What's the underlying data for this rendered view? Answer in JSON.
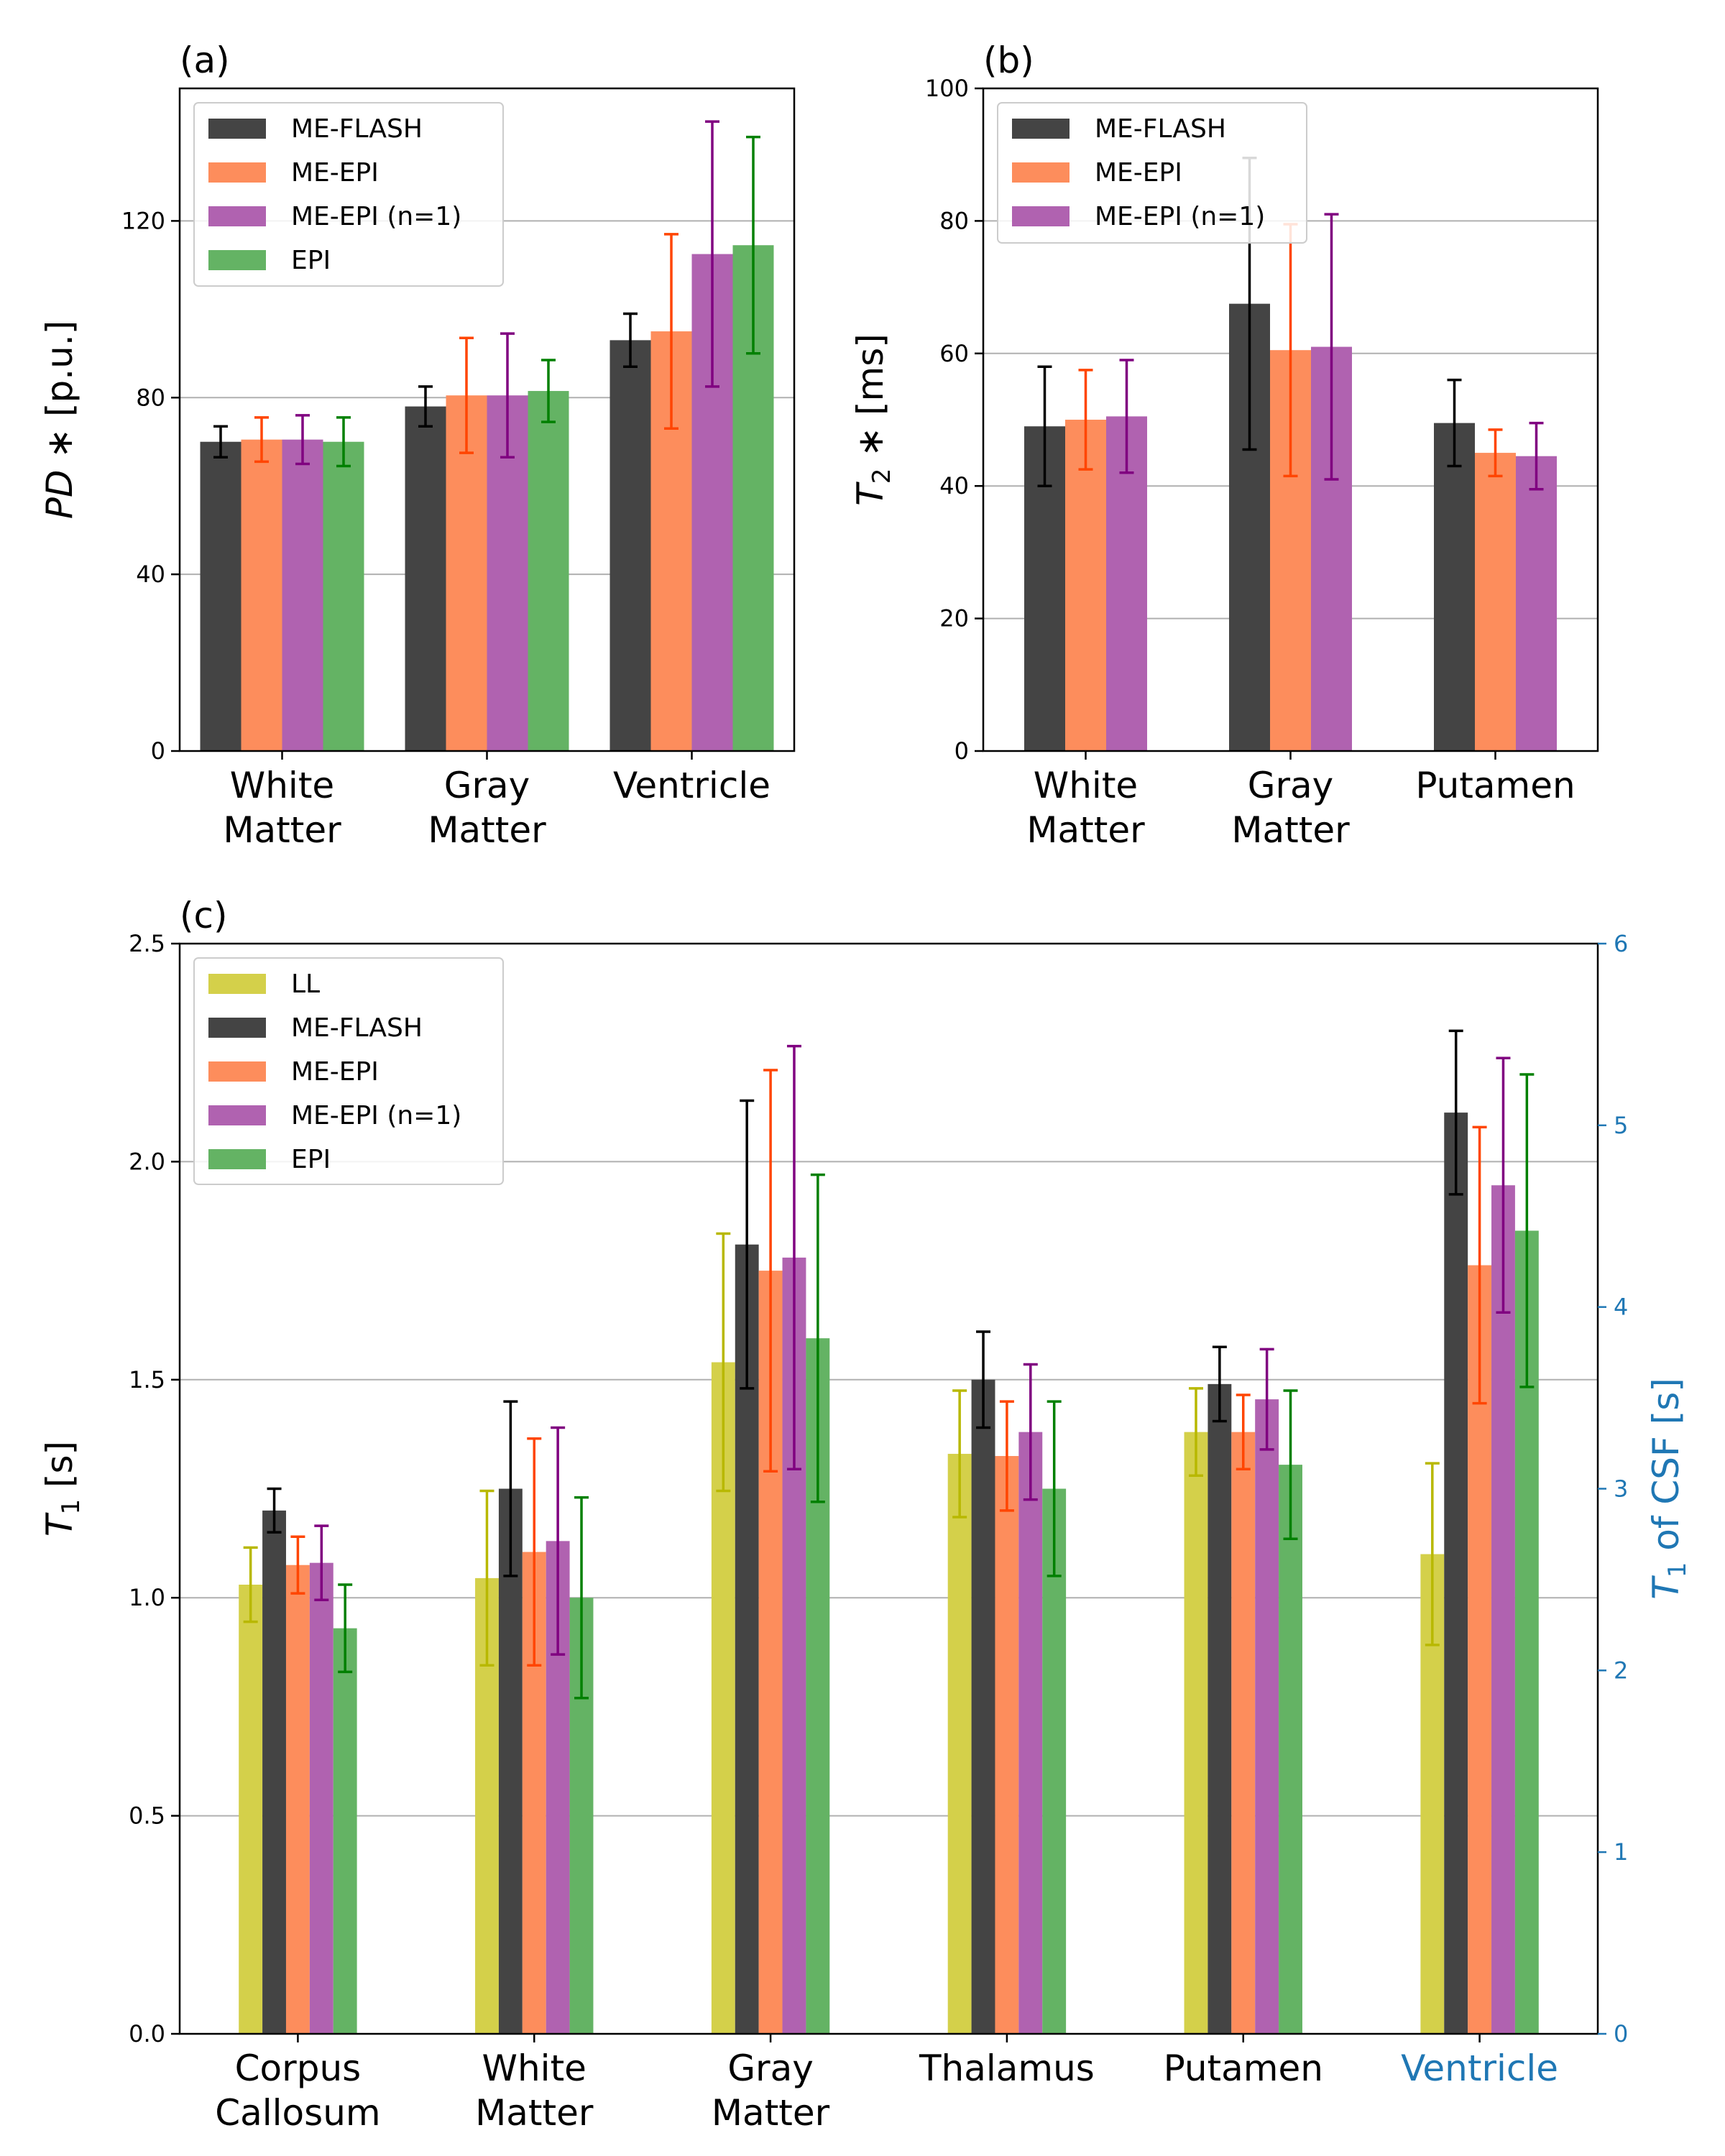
{
  "figure": {
    "colors": {
      "LL": "#d4d04a",
      "ME-FLASH": "#444444",
      "ME-EPI": "#fd8d5c",
      "ME-EPI (n=1)": "#b062b0",
      "EPI": "#64b364",
      "err_LL": "#b8b800",
      "err_ME-FLASH": "#000000",
      "err_ME-EPI": "#ff4500",
      "err_ME-EPI (n=1)": "#800080",
      "err_EPI": "#008000",
      "secondary_axis": "#1f77b4",
      "grid": "#b0b0b0"
    }
  },
  "chart_data": [
    {
      "id": "a",
      "panel_label": "(a)",
      "type": "bar",
      "categories": [
        "White\nMatter",
        "Gray\nMatter",
        "Ventricle"
      ],
      "ylabel_italic": "PD",
      "ylabel_rest": "∗ [p.u.]",
      "ylim": [
        0,
        150
      ],
      "yticks": [
        0,
        40,
        80,
        120
      ],
      "grid": true,
      "legend_position": "top-left",
      "series": [
        {
          "name": "ME-FLASH",
          "values": [
            70,
            78,
            93
          ],
          "errors": [
            3.5,
            4.5,
            6
          ]
        },
        {
          "name": "ME-EPI",
          "values": [
            70.5,
            80.5,
            95
          ],
          "errors": [
            5,
            13,
            22
          ]
        },
        {
          "name": "ME-EPI (n=1)",
          "values": [
            70.5,
            80.5,
            112.5
          ],
          "errors": [
            5.5,
            14,
            30
          ]
        },
        {
          "name": "EPI",
          "values": [
            70,
            81.5,
            114.5
          ],
          "errors": [
            5.5,
            7,
            24.5
          ]
        }
      ]
    },
    {
      "id": "b",
      "panel_label": "(b)",
      "type": "bar",
      "categories": [
        "White\nMatter",
        "Gray\nMatter",
        "Putamen"
      ],
      "ylabel_italic": "T",
      "ylabel_sub": "2",
      "ylabel_rest": "∗ [ms]",
      "ylim": [
        0,
        100
      ],
      "yticks": [
        0,
        20,
        40,
        60,
        80,
        100
      ],
      "grid": true,
      "legend_position": "top-left",
      "series": [
        {
          "name": "ME-FLASH",
          "values": [
            49,
            67.5,
            49.5
          ],
          "errors": [
            9,
            22,
            6.5
          ]
        },
        {
          "name": "ME-EPI",
          "values": [
            50,
            60.5,
            45
          ],
          "errors": [
            7.5,
            19,
            3.5
          ]
        },
        {
          "name": "ME-EPI (n=1)",
          "values": [
            50.5,
            61,
            44.5
          ],
          "errors": [
            8.5,
            20,
            5
          ]
        }
      ]
    },
    {
      "id": "c",
      "panel_label": "(c)",
      "type": "bar",
      "categories": [
        "Corpus\nCallosum",
        "White\nMatter",
        "Gray\nMatter",
        "Thalamus",
        "Putamen",
        "Ventricle"
      ],
      "secondary_axis_categories": [
        "Ventricle"
      ],
      "ylabel_italic": "T",
      "ylabel_sub": "1",
      "ylabel_rest": "[s]",
      "ylim": [
        0,
        2.5
      ],
      "yticks": [
        0.0,
        0.5,
        1.0,
        1.5,
        2.0,
        2.5
      ],
      "ytick_labels": [
        "0.0",
        "0.5",
        "1.0",
        "1.5",
        "2.0",
        "2.5"
      ],
      "y2label_italic": "T",
      "y2label_sub": "1",
      "y2label_rest": "of CSF [s]",
      "y2lim": [
        0,
        6
      ],
      "y2ticks": [
        0,
        1,
        2,
        3,
        4,
        5,
        6
      ],
      "grid": true,
      "legend_position": "top-left",
      "series": [
        {
          "name": "LL",
          "values": [
            1.03,
            1.045,
            1.54,
            1.33,
            1.38,
            2.64
          ],
          "errors": [
            0.085,
            0.2,
            0.295,
            0.145,
            0.1,
            0.5
          ]
        },
        {
          "name": "ME-FLASH",
          "values": [
            1.2,
            1.25,
            1.81,
            1.5,
            1.49,
            5.07
          ],
          "errors": [
            0.05,
            0.2,
            0.33,
            0.11,
            0.085,
            0.45
          ]
        },
        {
          "name": "ME-EPI",
          "values": [
            1.075,
            1.105,
            1.75,
            1.325,
            1.38,
            4.23
          ],
          "errors": [
            0.065,
            0.26,
            0.46,
            0.125,
            0.085,
            0.76
          ]
        },
        {
          "name": "ME-EPI (n=1)",
          "values": [
            1.08,
            1.13,
            1.78,
            1.38,
            1.455,
            4.67
          ],
          "errors": [
            0.085,
            0.26,
            0.485,
            0.155,
            0.115,
            0.7
          ]
        },
        {
          "name": "EPI",
          "values": [
            0.93,
            1.0,
            1.595,
            1.25,
            1.305,
            4.42
          ],
          "errors": [
            0.1,
            0.23,
            0.375,
            0.2,
            0.17,
            0.86
          ]
        }
      ]
    }
  ]
}
